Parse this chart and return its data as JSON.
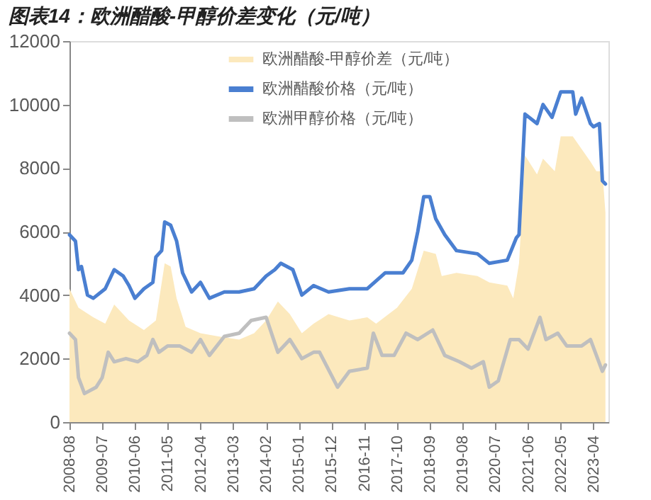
{
  "chart_data": {
    "type": "line",
    "title": "图表14：欧洲醋酸-甲醇价差变化（元/吨）",
    "ylim": [
      0,
      12000
    ],
    "yticks": [
      0,
      2000,
      4000,
      6000,
      8000,
      10000,
      12000
    ],
    "xlim": [
      "2008-08",
      "2023-09"
    ],
    "xticks": [
      {
        "value": "2008-08",
        "label": "2008-08"
      },
      {
        "value": "2009-07",
        "label": "2009-07"
      },
      {
        "value": "2010-06",
        "label": "2010-06"
      },
      {
        "value": "2011-05",
        "label": "2011-05"
      },
      {
        "value": "2012-04",
        "label": "2012-04"
      },
      {
        "value": "2013-03",
        "label": "2013-03"
      },
      {
        "value": "2014-02",
        "label": "2014-02"
      },
      {
        "value": "2015-01",
        "label": "2015-01"
      },
      {
        "value": "2015-12",
        "label": "2015-12"
      },
      {
        "value": "2016-11",
        "label": "2016-11"
      },
      {
        "value": "2017-10",
        "label": "2017-10"
      },
      {
        "value": "2018-09",
        "label": "2018-09"
      },
      {
        "value": "2019-08",
        "label": "2019-08"
      },
      {
        "value": "2020-07",
        "label": "2020-07"
      },
      {
        "value": "2021-06",
        "label": "2021-06"
      },
      {
        "value": "2022-05",
        "label": "2022-05"
      },
      {
        "value": "2023-04",
        "label": "2023-04"
      }
    ],
    "grid": false,
    "legend": "top",
    "series": [
      {
        "name": "欧洲醋酸-甲醇价差（元/吨）",
        "type": "area",
        "color": "#fce9bd",
        "x": [
          "2008-08",
          "2008-11",
          "2009-04",
          "2009-08",
          "2009-11",
          "2010-04",
          "2010-09",
          "2011-01",
          "2011-04",
          "2011-06",
          "2011-08",
          "2011-11",
          "2012-04",
          "2012-10",
          "2013-05",
          "2013-10",
          "2014-02",
          "2014-06",
          "2014-10",
          "2015-02",
          "2015-06",
          "2015-11",
          "2016-06",
          "2016-12",
          "2017-03",
          "2017-10",
          "2018-03",
          "2018-05",
          "2018-07",
          "2018-11",
          "2019-01",
          "2019-06",
          "2020-01",
          "2020-05",
          "2020-11",
          "2021-01",
          "2021-03",
          "2021-05",
          "2021-09",
          "2021-11",
          "2022-03",
          "2022-05",
          "2022-09",
          "2022-12",
          "2023-03",
          "2023-05",
          "2023-07",
          "2023-08"
        ],
        "values": [
          4200,
          3600,
          3300,
          3100,
          3700,
          3200,
          2900,
          3200,
          5000,
          4900,
          3900,
          3000,
          2800,
          2700,
          2600,
          2800,
          3200,
          3800,
          3400,
          2800,
          3100,
          3400,
          3200,
          3300,
          3100,
          3600,
          4200,
          4800,
          5400,
          5300,
          4600,
          4700,
          4600,
          4400,
          4300,
          3900,
          5000,
          8400,
          7800,
          8300,
          7900,
          9000,
          9000,
          8600,
          8200,
          7900,
          7900,
          6600
        ]
      },
      {
        "name": "欧洲醋酸价格（元/吨）",
        "color": "#4a7fd1",
        "x": [
          "2008-08",
          "2008-10",
          "2008-11",
          "2008-12",
          "2009-02",
          "2009-04",
          "2009-08",
          "2009-11",
          "2010-02",
          "2010-04",
          "2010-06",
          "2010-09",
          "2010-12",
          "2011-01",
          "2011-03",
          "2011-04",
          "2011-06",
          "2011-08",
          "2011-10",
          "2012-01",
          "2012-04",
          "2012-07",
          "2012-12",
          "2013-05",
          "2013-10",
          "2014-02",
          "2014-05",
          "2014-07",
          "2014-11",
          "2015-02",
          "2015-06",
          "2015-11",
          "2016-06",
          "2016-12",
          "2017-06",
          "2017-12",
          "2018-03",
          "2018-05",
          "2018-07",
          "2018-09",
          "2018-11",
          "2019-02",
          "2019-06",
          "2020-01",
          "2020-05",
          "2020-11",
          "2021-02",
          "2021-03",
          "2021-05",
          "2021-09",
          "2021-11",
          "2022-02",
          "2022-05",
          "2022-09",
          "2022-10",
          "2022-12",
          "2023-03",
          "2023-04",
          "2023-06",
          "2023-07",
          "2023-08"
        ],
        "values": [
          5900,
          5700,
          4800,
          4900,
          4000,
          3900,
          4200,
          4800,
          4600,
          4300,
          3900,
          4200,
          4400,
          5200,
          5400,
          6300,
          6200,
          5700,
          4700,
          4100,
          4400,
          3900,
          4100,
          4100,
          4200,
          4600,
          4800,
          5000,
          4800,
          4000,
          4300,
          4100,
          4200,
          4200,
          4700,
          4700,
          5100,
          6000,
          7100,
          7100,
          6400,
          5900,
          5400,
          5300,
          5000,
          5100,
          5800,
          5900,
          9700,
          9400,
          10000,
          9600,
          10400,
          10400,
          9700,
          10200,
          9400,
          9300,
          9400,
          7600,
          7500
        ]
      },
      {
        "name": "欧洲甲醇价格（元/吨）",
        "color": "#bfbfbf",
        "x": [
          "2008-08",
          "2008-10",
          "2008-11",
          "2009-01",
          "2009-05",
          "2009-07",
          "2009-09",
          "2009-11",
          "2010-03",
          "2010-07",
          "2010-10",
          "2010-12",
          "2011-02",
          "2011-05",
          "2011-09",
          "2012-01",
          "2012-04",
          "2012-07",
          "2012-12",
          "2013-05",
          "2013-09",
          "2014-02",
          "2014-06",
          "2014-10",
          "2015-02",
          "2015-06",
          "2015-08",
          "2016-02",
          "2016-06",
          "2016-12",
          "2017-02",
          "2017-05",
          "2017-09",
          "2018-01",
          "2018-05",
          "2018-10",
          "2019-02",
          "2019-07",
          "2019-11",
          "2020-03",
          "2020-05",
          "2020-08",
          "2020-12",
          "2021-03",
          "2021-06",
          "2021-10",
          "2021-12",
          "2022-04",
          "2022-07",
          "2022-12",
          "2023-03",
          "2023-07",
          "2023-08"
        ],
        "values": [
          2800,
          2600,
          1400,
          900,
          1100,
          1400,
          2200,
          1900,
          2000,
          1900,
          2100,
          2600,
          2200,
          2400,
          2400,
          2200,
          2600,
          2100,
          2700,
          2800,
          3200,
          3300,
          2200,
          2600,
          2000,
          2200,
          2200,
          1100,
          1600,
          1700,
          2800,
          2100,
          2100,
          2800,
          2600,
          2900,
          2100,
          1900,
          1700,
          1900,
          1100,
          1300,
          2600,
          2600,
          2300,
          3300,
          2600,
          2800,
          2400,
          2400,
          2600,
          1600,
          1800
        ]
      }
    ]
  }
}
